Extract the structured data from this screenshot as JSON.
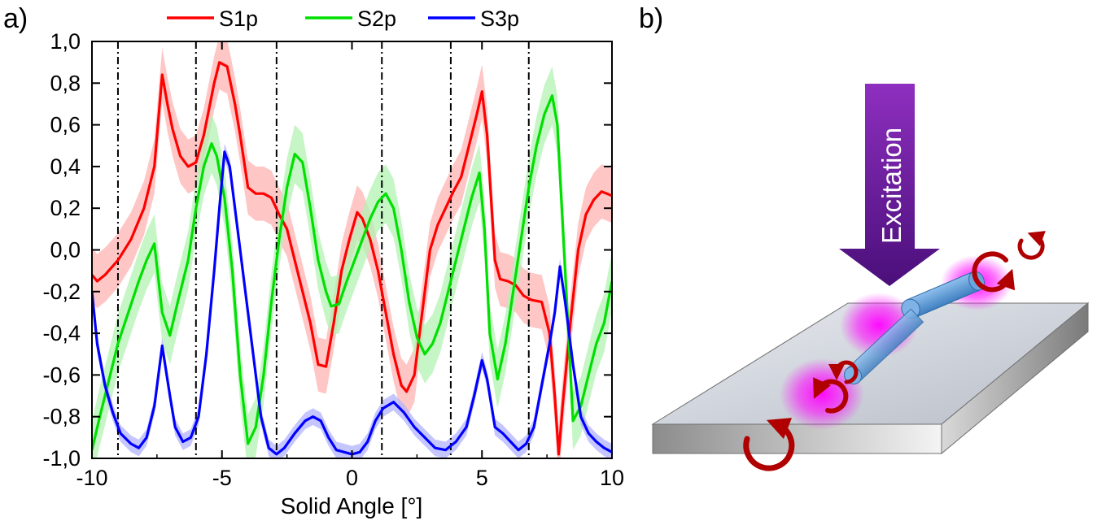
{
  "panels": {
    "a_label": "a)",
    "b_label": "b)"
  },
  "chart_data": {
    "type": "line",
    "title": "",
    "xlabel": "Solid Angle [°]",
    "ylabel": "",
    "xlim": [
      -10,
      10
    ],
    "ylim": [
      -1.0,
      1.0
    ],
    "x_ticks": [
      -10,
      -5,
      0,
      5,
      10
    ],
    "x_tick_labels": [
      "-10",
      "-5",
      "0",
      "5",
      "10"
    ],
    "y_ticks": [
      -1.0,
      -0.8,
      -0.6,
      -0.4,
      -0.2,
      0.0,
      0.2,
      0.4,
      0.6,
      0.8,
      1.0
    ],
    "y_tick_labels": [
      "-1,0",
      "-0,8",
      "-0,6",
      "-0,4",
      "-0,2",
      "0,0",
      "0,2",
      "0,4",
      "0,6",
      "0,8",
      "1,0"
    ],
    "grid": false,
    "legend_position": "top",
    "vertical_dashdot_lines_x": [
      -9.0,
      -6.0,
      -2.9,
      1.15,
      3.8,
      6.8
    ],
    "series": [
      {
        "name": "S1p",
        "color": "#ff0000",
        "band_color": "#ffb3b3",
        "band_halfwidth": 0.13,
        "points": [
          [
            -10,
            -0.12
          ],
          [
            -9.8,
            -0.15
          ],
          [
            -9.5,
            -0.12
          ],
          [
            -9,
            -0.05
          ],
          [
            -8.5,
            0.05
          ],
          [
            -8,
            0.2
          ],
          [
            -7.6,
            0.4
          ],
          [
            -7.3,
            0.84
          ],
          [
            -7.1,
            0.7
          ],
          [
            -6.9,
            0.58
          ],
          [
            -6.6,
            0.45
          ],
          [
            -6.3,
            0.4
          ],
          [
            -6,
            0.42
          ],
          [
            -5.7,
            0.55
          ],
          [
            -5.3,
            0.8
          ],
          [
            -5.1,
            0.9
          ],
          [
            -4.8,
            0.88
          ],
          [
            -4.5,
            0.7
          ],
          [
            -4.3,
            0.55
          ],
          [
            -4.0,
            0.3
          ],
          [
            -3.7,
            0.27
          ],
          [
            -3.4,
            0.27
          ],
          [
            -3.1,
            0.25
          ],
          [
            -2.8,
            0.17
          ],
          [
            -2.5,
            0.1
          ],
          [
            -2.2,
            -0.05
          ],
          [
            -1.9,
            -0.2
          ],
          [
            -1.6,
            -0.35
          ],
          [
            -1.3,
            -0.55
          ],
          [
            -1.0,
            -0.56
          ],
          [
            -0.7,
            -0.35
          ],
          [
            -0.4,
            -0.1
          ],
          [
            -0.1,
            0.05
          ],
          [
            0.2,
            0.18
          ],
          [
            0.4,
            0.15
          ],
          [
            0.7,
            0.05
          ],
          [
            1.0,
            -0.1
          ],
          [
            1.3,
            -0.3
          ],
          [
            1.6,
            -0.5
          ],
          [
            1.9,
            -0.65
          ],
          [
            2.1,
            -0.68
          ],
          [
            2.4,
            -0.6
          ],
          [
            2.7,
            -0.3
          ],
          [
            3.0,
            0.0
          ],
          [
            3.3,
            0.12
          ],
          [
            3.6,
            0.2
          ],
          [
            3.9,
            0.28
          ],
          [
            4.2,
            0.35
          ],
          [
            4.5,
            0.5
          ],
          [
            4.8,
            0.65
          ],
          [
            5.0,
            0.76
          ],
          [
            5.2,
            0.55
          ],
          [
            5.5,
            -0.05
          ],
          [
            5.7,
            -0.14
          ],
          [
            6.0,
            -0.15
          ],
          [
            6.3,
            -0.17
          ],
          [
            6.6,
            -0.22
          ],
          [
            6.9,
            -0.24
          ],
          [
            7.3,
            -0.25
          ],
          [
            7.6,
            -0.4
          ],
          [
            7.8,
            -0.7
          ],
          [
            7.95,
            -0.98
          ],
          [
            8.1,
            -0.75
          ],
          [
            8.4,
            -0.35
          ],
          [
            8.7,
            0.0
          ],
          [
            9.0,
            0.17
          ],
          [
            9.3,
            0.24
          ],
          [
            9.6,
            0.28
          ],
          [
            10,
            0.26
          ]
        ]
      },
      {
        "name": "S2p",
        "color": "#00e000",
        "band_color": "#b3f2b3",
        "band_halfwidth": 0.14,
        "points": [
          [
            -10,
            -0.96
          ],
          [
            -9.7,
            -0.8
          ],
          [
            -9.3,
            -0.6
          ],
          [
            -9,
            -0.45
          ],
          [
            -8.6,
            -0.3
          ],
          [
            -8.2,
            -0.15
          ],
          [
            -7.9,
            -0.05
          ],
          [
            -7.6,
            0.03
          ],
          [
            -7.3,
            -0.3
          ],
          [
            -7.0,
            -0.41
          ],
          [
            -6.7,
            -0.25
          ],
          [
            -6.3,
            -0.05
          ],
          [
            -6.0,
            0.2
          ],
          [
            -5.7,
            0.4
          ],
          [
            -5.4,
            0.51
          ],
          [
            -5.2,
            0.45
          ],
          [
            -4.9,
            0.25
          ],
          [
            -4.6,
            -0.1
          ],
          [
            -4.3,
            -0.6
          ],
          [
            -4.0,
            -0.93
          ],
          [
            -3.7,
            -0.85
          ],
          [
            -3.4,
            -0.6
          ],
          [
            -3.1,
            -0.25
          ],
          [
            -2.8,
            0.05
          ],
          [
            -2.5,
            0.3
          ],
          [
            -2.2,
            0.46
          ],
          [
            -1.9,
            0.42
          ],
          [
            -1.6,
            0.2
          ],
          [
            -1.3,
            -0.05
          ],
          [
            -1.0,
            -0.2
          ],
          [
            -0.8,
            -0.27
          ],
          [
            -0.5,
            -0.26
          ],
          [
            -0.2,
            -0.15
          ],
          [
            0.1,
            -0.05
          ],
          [
            0.4,
            0.05
          ],
          [
            0.7,
            0.15
          ],
          [
            1.0,
            0.23
          ],
          [
            1.3,
            0.27
          ],
          [
            1.6,
            0.2
          ],
          [
            1.9,
            0.0
          ],
          [
            2.2,
            -0.25
          ],
          [
            2.5,
            -0.42
          ],
          [
            2.8,
            -0.5
          ],
          [
            3.1,
            -0.45
          ],
          [
            3.4,
            -0.35
          ],
          [
            3.7,
            -0.2
          ],
          [
            4.0,
            -0.05
          ],
          [
            4.3,
            0.1
          ],
          [
            4.6,
            0.25
          ],
          [
            4.9,
            0.37
          ],
          [
            5.1,
            0.1
          ],
          [
            5.3,
            -0.4
          ],
          [
            5.6,
            -0.62
          ],
          [
            5.9,
            -0.45
          ],
          [
            6.2,
            -0.2
          ],
          [
            6.5,
            0.05
          ],
          [
            6.8,
            0.3
          ],
          [
            7.1,
            0.5
          ],
          [
            7.4,
            0.65
          ],
          [
            7.7,
            0.74
          ],
          [
            7.9,
            0.6
          ],
          [
            8.2,
            -0.1
          ],
          [
            8.5,
            -0.82
          ],
          [
            8.8,
            -0.75
          ],
          [
            9.1,
            -0.6
          ],
          [
            9.4,
            -0.45
          ],
          [
            9.7,
            -0.35
          ],
          [
            10,
            -0.15
          ]
        ]
      },
      {
        "name": "S3p",
        "color": "#0000ff",
        "band_color": "#b3b3ff",
        "band_halfwidth": 0.04,
        "points": [
          [
            -10,
            -0.2
          ],
          [
            -9.8,
            -0.45
          ],
          [
            -9.5,
            -0.65
          ],
          [
            -9.2,
            -0.78
          ],
          [
            -8.9,
            -0.88
          ],
          [
            -8.5,
            -0.93
          ],
          [
            -8.2,
            -0.95
          ],
          [
            -7.9,
            -0.9
          ],
          [
            -7.6,
            -0.75
          ],
          [
            -7.3,
            -0.46
          ],
          [
            -7.0,
            -0.7
          ],
          [
            -6.8,
            -0.85
          ],
          [
            -6.5,
            -0.92
          ],
          [
            -6.2,
            -0.9
          ],
          [
            -5.9,
            -0.8
          ],
          [
            -5.6,
            -0.5
          ],
          [
            -5.3,
            -0.1
          ],
          [
            -5.1,
            0.2
          ],
          [
            -4.9,
            0.47
          ],
          [
            -4.7,
            0.4
          ],
          [
            -4.4,
            0.1
          ],
          [
            -4.1,
            -0.2
          ],
          [
            -3.8,
            -0.5
          ],
          [
            -3.5,
            -0.8
          ],
          [
            -3.2,
            -0.95
          ],
          [
            -2.9,
            -0.98
          ],
          [
            -2.6,
            -0.95
          ],
          [
            -2.2,
            -0.88
          ],
          [
            -1.8,
            -0.82
          ],
          [
            -1.5,
            -0.8
          ],
          [
            -1.2,
            -0.82
          ],
          [
            -0.9,
            -0.9
          ],
          [
            -0.6,
            -0.96
          ],
          [
            -0.3,
            -0.97
          ],
          [
            0.0,
            -0.98
          ],
          [
            0.3,
            -0.97
          ],
          [
            0.6,
            -0.92
          ],
          [
            0.9,
            -0.82
          ],
          [
            1.2,
            -0.76
          ],
          [
            1.6,
            -0.73
          ],
          [
            2.0,
            -0.78
          ],
          [
            2.4,
            -0.85
          ],
          [
            2.8,
            -0.9
          ],
          [
            3.2,
            -0.95
          ],
          [
            3.6,
            -0.96
          ],
          [
            4.0,
            -0.92
          ],
          [
            4.4,
            -0.85
          ],
          [
            4.7,
            -0.7
          ],
          [
            5.0,
            -0.53
          ],
          [
            5.2,
            -0.62
          ],
          [
            5.5,
            -0.85
          ],
          [
            5.8,
            -0.88
          ],
          [
            6.1,
            -0.92
          ],
          [
            6.4,
            -0.96
          ],
          [
            6.7,
            -0.93
          ],
          [
            7.0,
            -0.85
          ],
          [
            7.3,
            -0.65
          ],
          [
            7.6,
            -0.45
          ],
          [
            7.8,
            -0.3
          ],
          [
            8.0,
            -0.08
          ],
          [
            8.2,
            -0.25
          ],
          [
            8.5,
            -0.55
          ],
          [
            8.8,
            -0.8
          ],
          [
            9.1,
            -0.88
          ],
          [
            9.4,
            -0.92
          ],
          [
            9.7,
            -0.95
          ],
          [
            10,
            -0.97
          ]
        ]
      }
    ]
  },
  "diagram": {
    "excitation_label": "Excitation",
    "colors": {
      "arrow_top": "#8e2fbf",
      "arrow_bottom": "#4a0f7a",
      "slab_top": "#d6dbe3",
      "slab_side": "#9a9a9a",
      "nanowire": "#5b9bd5",
      "glow": "#ff00ff",
      "circular_arrows": "#b00000"
    }
  }
}
